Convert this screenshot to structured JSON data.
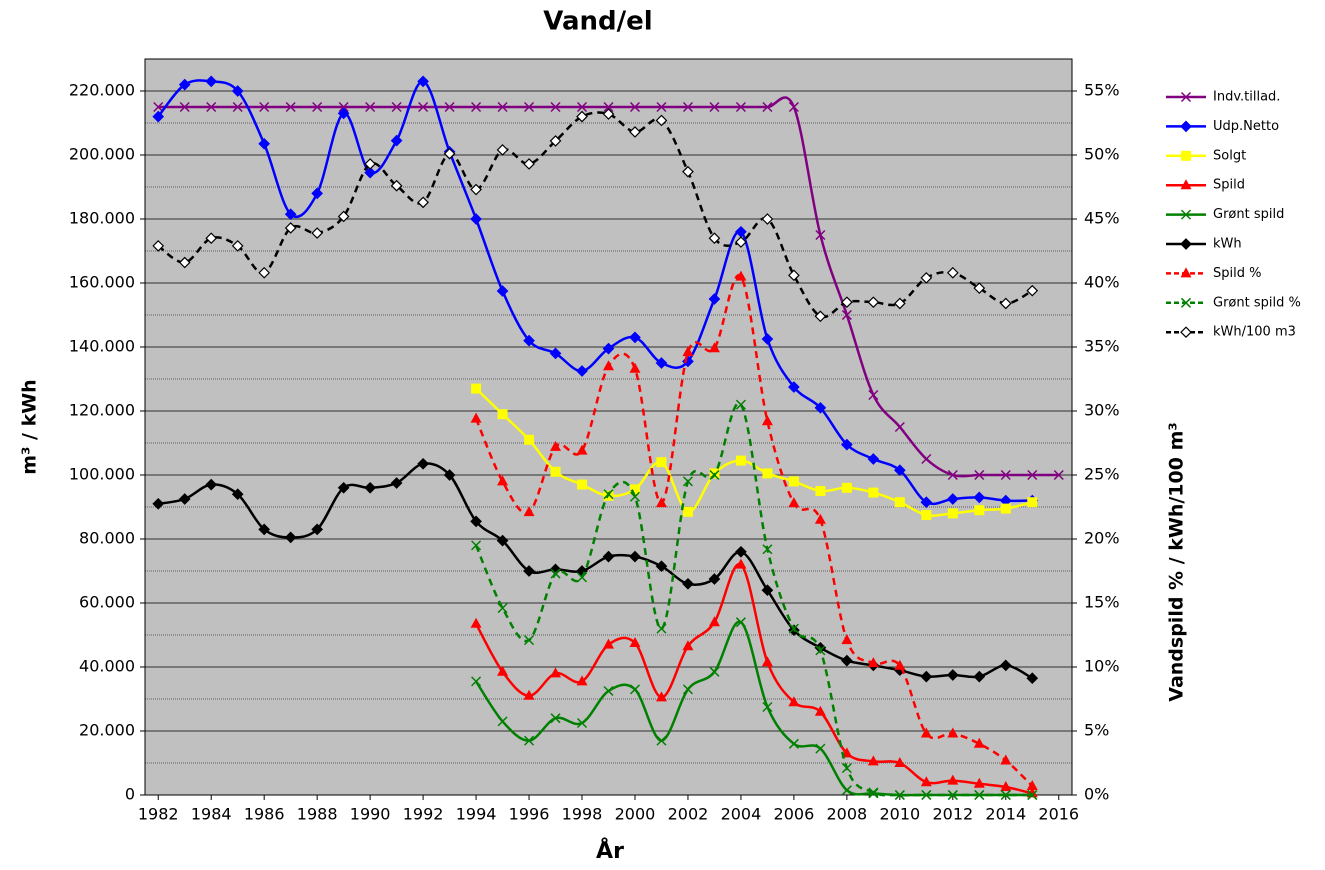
{
  "chart_data": {
    "type": "line",
    "title": "Vand/el",
    "x_label": "År",
    "y_label": "m³ / kWh",
    "y2_label": "Vandspild % / kWh/100 m³",
    "x": [
      1982,
      1983,
      1984,
      1985,
      1986,
      1987,
      1988,
      1989,
      1990,
      1991,
      1992,
      1993,
      1994,
      1995,
      1996,
      1997,
      1998,
      1999,
      2000,
      2001,
      2002,
      2003,
      2004,
      2005,
      2006,
      2007,
      2008,
      2009,
      2010,
      2011,
      2012,
      2013,
      2014,
      2015,
      2016
    ],
    "xlim": [
      1981.5,
      2016.5
    ],
    "xticks": [
      1982,
      1984,
      1986,
      1988,
      1990,
      1992,
      1994,
      1996,
      1998,
      2000,
      2002,
      2004,
      2006,
      2008,
      2010,
      2012,
      2014,
      2016
    ],
    "ylim": [
      0,
      230000
    ],
    "yticks": [
      0,
      {
        "value": 20000,
        "label": "20.000"
      },
      {
        "value": 40000,
        "label": "40.000"
      },
      {
        "value": 60000,
        "label": "60.000"
      },
      {
        "value": 80000,
        "label": "80.000"
      },
      {
        "value": 100000,
        "label": "100.000"
      },
      {
        "value": 120000,
        "label": "120.000"
      },
      {
        "value": 140000,
        "label": "140.000"
      },
      {
        "value": 160000,
        "label": "160.000"
      },
      {
        "value": 180000,
        "label": "180.000"
      },
      {
        "value": 200000,
        "label": "200.000"
      },
      {
        "value": 220000,
        "label": "220.000"
      }
    ],
    "y2lim": [
      0,
      57.5
    ],
    "y2ticks": [
      {
        "value": 0,
        "label": "0%"
      },
      {
        "value": 5,
        "label": "5%"
      },
      {
        "value": 10,
        "label": "10%"
      },
      {
        "value": 15,
        "label": "15%"
      },
      {
        "value": 20,
        "label": "20%"
      },
      {
        "value": 25,
        "label": "25%"
      },
      {
        "value": 30,
        "label": "30%"
      },
      {
        "value": 35,
        "label": "35%"
      },
      {
        "value": 40,
        "label": "40%"
      },
      {
        "value": 45,
        "label": "45%"
      },
      {
        "value": 50,
        "label": "50%"
      },
      {
        "value": 55,
        "label": "55%"
      }
    ],
    "grid": true,
    "minor_grid": true,
    "legend": "right",
    "series": [
      {
        "name": "Indv.tillad.",
        "color": "#800080",
        "marker": "x",
        "dash": false,
        "values": [
          215000,
          215000,
          215000,
          215000,
          215000,
          215000,
          215000,
          215000,
          215000,
          215000,
          215000,
          215000,
          215000,
          215000,
          215000,
          215000,
          215000,
          215000,
          215000,
          215000,
          215000,
          215000,
          215000,
          215000,
          215000,
          175000,
          150000,
          125000,
          115000,
          105000,
          100000,
          100000,
          100000,
          100000,
          100000
        ]
      },
      {
        "name": "Udp.Netto",
        "color": "#0000ff",
        "marker": "diamond",
        "dash": false,
        "values": [
          212000,
          222000,
          223000,
          220000,
          203500,
          181500,
          188000,
          213000,
          194500,
          204500,
          223000,
          201000,
          180000,
          157500,
          142000,
          138000,
          132500,
          139500,
          143000,
          135000,
          135500,
          155000,
          176000,
          142500,
          127500,
          121000,
          109500,
          105000,
          101500,
          91500,
          92500,
          93000,
          92000,
          92000,
          null
        ]
      },
      {
        "name": "Solgt",
        "color": "#ffff00",
        "marker": "square",
        "dash": false,
        "values": [
          null,
          null,
          null,
          null,
          null,
          null,
          null,
          null,
          null,
          null,
          null,
          null,
          127000,
          119000,
          111000,
          101000,
          97000,
          93500,
          95500,
          104000,
          88500,
          100500,
          104500,
          100500,
          98000,
          95000,
          96000,
          94500,
          91500,
          87500,
          88000,
          89000,
          89500,
          91500,
          null
        ]
      },
      {
        "name": "Spild",
        "color": "#ff0000",
        "marker": "triangle",
        "dash": false,
        "values": [
          null,
          null,
          null,
          null,
          null,
          null,
          null,
          null,
          null,
          null,
          null,
          null,
          53500,
          38500,
          31000,
          38000,
          35500,
          47000,
          47500,
          30500,
          46500,
          54000,
          72000,
          41500,
          29000,
          26000,
          13000,
          10500,
          10000,
          4000,
          4500,
          3500,
          2500,
          500,
          null
        ]
      },
      {
        "name": "Grønt spild",
        "color": "#008000",
        "marker": "x",
        "dash": false,
        "values": [
          null,
          null,
          null,
          null,
          null,
          null,
          null,
          null,
          null,
          null,
          null,
          null,
          35500,
          23000,
          17000,
          24000,
          22500,
          32500,
          33000,
          17000,
          33000,
          38500,
          54000,
          27500,
          16000,
          14500,
          1500,
          500,
          0,
          0,
          0,
          0,
          0,
          0,
          null
        ]
      },
      {
        "name": "kWh",
        "color": "#000000",
        "marker": "diamond",
        "dash": false,
        "values": [
          91000,
          92500,
          97000,
          94000,
          83000,
          80500,
          83000,
          96000,
          96000,
          97500,
          103500,
          100000,
          85500,
          79500,
          70000,
          70500,
          70000,
          74500,
          74500,
          71500,
          66000,
          67500,
          76000,
          64000,
          51500,
          46000,
          42000,
          40500,
          39000,
          37000,
          37500,
          37000,
          40500,
          36500,
          null
        ]
      },
      {
        "name": "Spild %",
        "color": "#ff0000",
        "marker": "triangle",
        "dash": true,
        "axis": "y2",
        "values": [
          null,
          null,
          null,
          null,
          null,
          null,
          null,
          null,
          null,
          null,
          null,
          null,
          29.4,
          24.5,
          22.1,
          27.2,
          26.9,
          33.5,
          33.3,
          22.8,
          34.6,
          34.9,
          40.5,
          29.2,
          22.8,
          21.5,
          12.1,
          10.3,
          10.1,
          4.8,
          4.8,
          4.0,
          2.7,
          0.7,
          null
        ]
      },
      {
        "name": "Grønt spild %",
        "color": "#008000",
        "marker": "x",
        "dash": true,
        "axis": "y2",
        "values": [
          null,
          null,
          null,
          null,
          null,
          null,
          null,
          null,
          null,
          null,
          null,
          null,
          19.5,
          14.6,
          12.1,
          17.3,
          17.0,
          23.5,
          23.3,
          13.0,
          24.5,
          25.0,
          30.5,
          19.2,
          13.0,
          11.3,
          2.1,
          0.2,
          0,
          0,
          0,
          0,
          0,
          0,
          null
        ]
      },
      {
        "name": "kWh/100 m3",
        "color": "#000000",
        "marker": "diamond-open",
        "dash": true,
        "axis": "y2",
        "values": [
          42.9,
          41.6,
          43.5,
          42.9,
          40.8,
          44.3,
          43.9,
          45.2,
          49.3,
          47.6,
          46.3,
          50.1,
          47.3,
          50.4,
          49.3,
          51.1,
          53.0,
          53.2,
          51.8,
          52.7,
          48.7,
          43.5,
          43.2,
          45.0,
          40.6,
          37.4,
          38.5,
          38.5,
          38.4,
          40.4,
          40.8,
          39.6,
          38.4,
          39.4,
          null
        ]
      }
    ]
  }
}
